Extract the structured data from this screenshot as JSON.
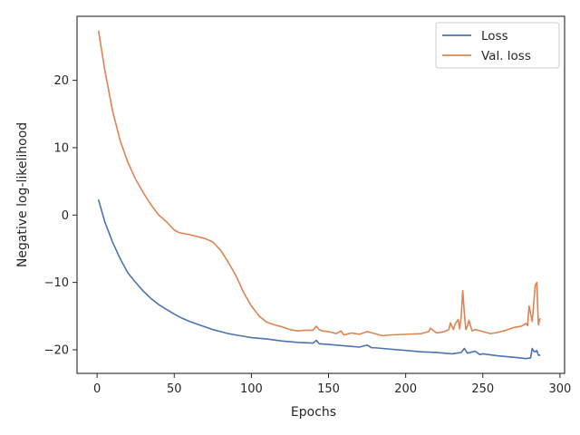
{
  "chart_data": {
    "type": "line",
    "title": "",
    "xlabel": "Epochs",
    "ylabel": "Negative log-likelihood",
    "xlim": [
      -13,
      303
    ],
    "ylim": [
      -23.5,
      29.5
    ],
    "xticks": [
      0,
      50,
      100,
      150,
      200,
      250,
      300
    ],
    "yticks": [
      -20,
      -10,
      0,
      10,
      20
    ],
    "grid": false,
    "legend": "top-right",
    "series": [
      {
        "name": "Loss",
        "color": "#4c72b0",
        "x": [
          1,
          5,
          10,
          15,
          20,
          25,
          30,
          35,
          40,
          45,
          50,
          55,
          60,
          65,
          70,
          75,
          80,
          85,
          90,
          95,
          100,
          110,
          120,
          130,
          140,
          142,
          144,
          150,
          160,
          170,
          175,
          178,
          180,
          190,
          200,
          210,
          220,
          230,
          236,
          238,
          240,
          245,
          248,
          250,
          260,
          270,
          278,
          281,
          282,
          283,
          284,
          285,
          286,
          287
        ],
        "values": [
          2.2,
          -1.0,
          -4.0,
          -6.5,
          -8.6,
          -10.0,
          -11.3,
          -12.4,
          -13.3,
          -14.0,
          -14.7,
          -15.3,
          -15.8,
          -16.2,
          -16.6,
          -17.0,
          -17.3,
          -17.6,
          -17.8,
          -18.0,
          -18.2,
          -18.4,
          -18.7,
          -18.9,
          -19.0,
          -18.6,
          -19.1,
          -19.2,
          -19.4,
          -19.6,
          -19.3,
          -19.7,
          -19.7,
          -19.9,
          -20.1,
          -20.3,
          -20.4,
          -20.6,
          -20.4,
          -19.8,
          -20.5,
          -20.2,
          -20.7,
          -20.6,
          -20.9,
          -21.1,
          -21.3,
          -21.2,
          -19.8,
          -20.2,
          -20.3,
          -20.1,
          -20.8,
          -20.8
        ]
      },
      {
        "name": "Val. loss",
        "color": "#dd8452",
        "x": [
          1,
          5,
          10,
          15,
          20,
          25,
          30,
          35,
          40,
          45,
          50,
          53,
          55,
          60,
          65,
          70,
          75,
          80,
          85,
          90,
          95,
          100,
          105,
          110,
          115,
          120,
          125,
          130,
          135,
          140,
          142,
          144,
          146,
          150,
          155,
          158,
          160,
          165,
          170,
          175,
          180,
          185,
          190,
          200,
          210,
          215,
          216,
          220,
          225,
          228,
          229,
          231,
          232,
          234,
          235,
          236,
          237,
          238,
          239,
          240,
          241,
          243,
          245,
          250,
          255,
          260,
          265,
          270,
          275,
          278,
          279,
          280,
          282,
          284,
          285,
          286,
          287
        ],
        "values": [
          27.3,
          21.5,
          15.5,
          11.0,
          7.8,
          5.3,
          3.3,
          1.5,
          0.0,
          -1.0,
          -2.2,
          -2.6,
          -2.7,
          -2.9,
          -3.2,
          -3.5,
          -4.0,
          -5.2,
          -7.0,
          -9.0,
          -11.5,
          -13.5,
          -15.0,
          -15.9,
          -16.3,
          -16.6,
          -17.0,
          -17.2,
          -17.1,
          -17.1,
          -16.5,
          -17.0,
          -17.2,
          -17.3,
          -17.6,
          -17.2,
          -17.8,
          -17.5,
          -17.7,
          -17.3,
          -17.6,
          -17.9,
          -17.8,
          -17.7,
          -17.6,
          -17.3,
          -16.8,
          -17.5,
          -17.3,
          -17.0,
          -16.0,
          -17.0,
          -16.2,
          -15.5,
          -16.9,
          -15.0,
          -11.2,
          -14.5,
          -17.0,
          -16.5,
          -15.6,
          -17.2,
          -17.0,
          -17.3,
          -17.6,
          -17.4,
          -17.1,
          -16.7,
          -16.5,
          -16.1,
          -16.4,
          -13.5,
          -15.8,
          -10.4,
          -10.0,
          -16.3,
          -15.4
        ]
      }
    ]
  }
}
